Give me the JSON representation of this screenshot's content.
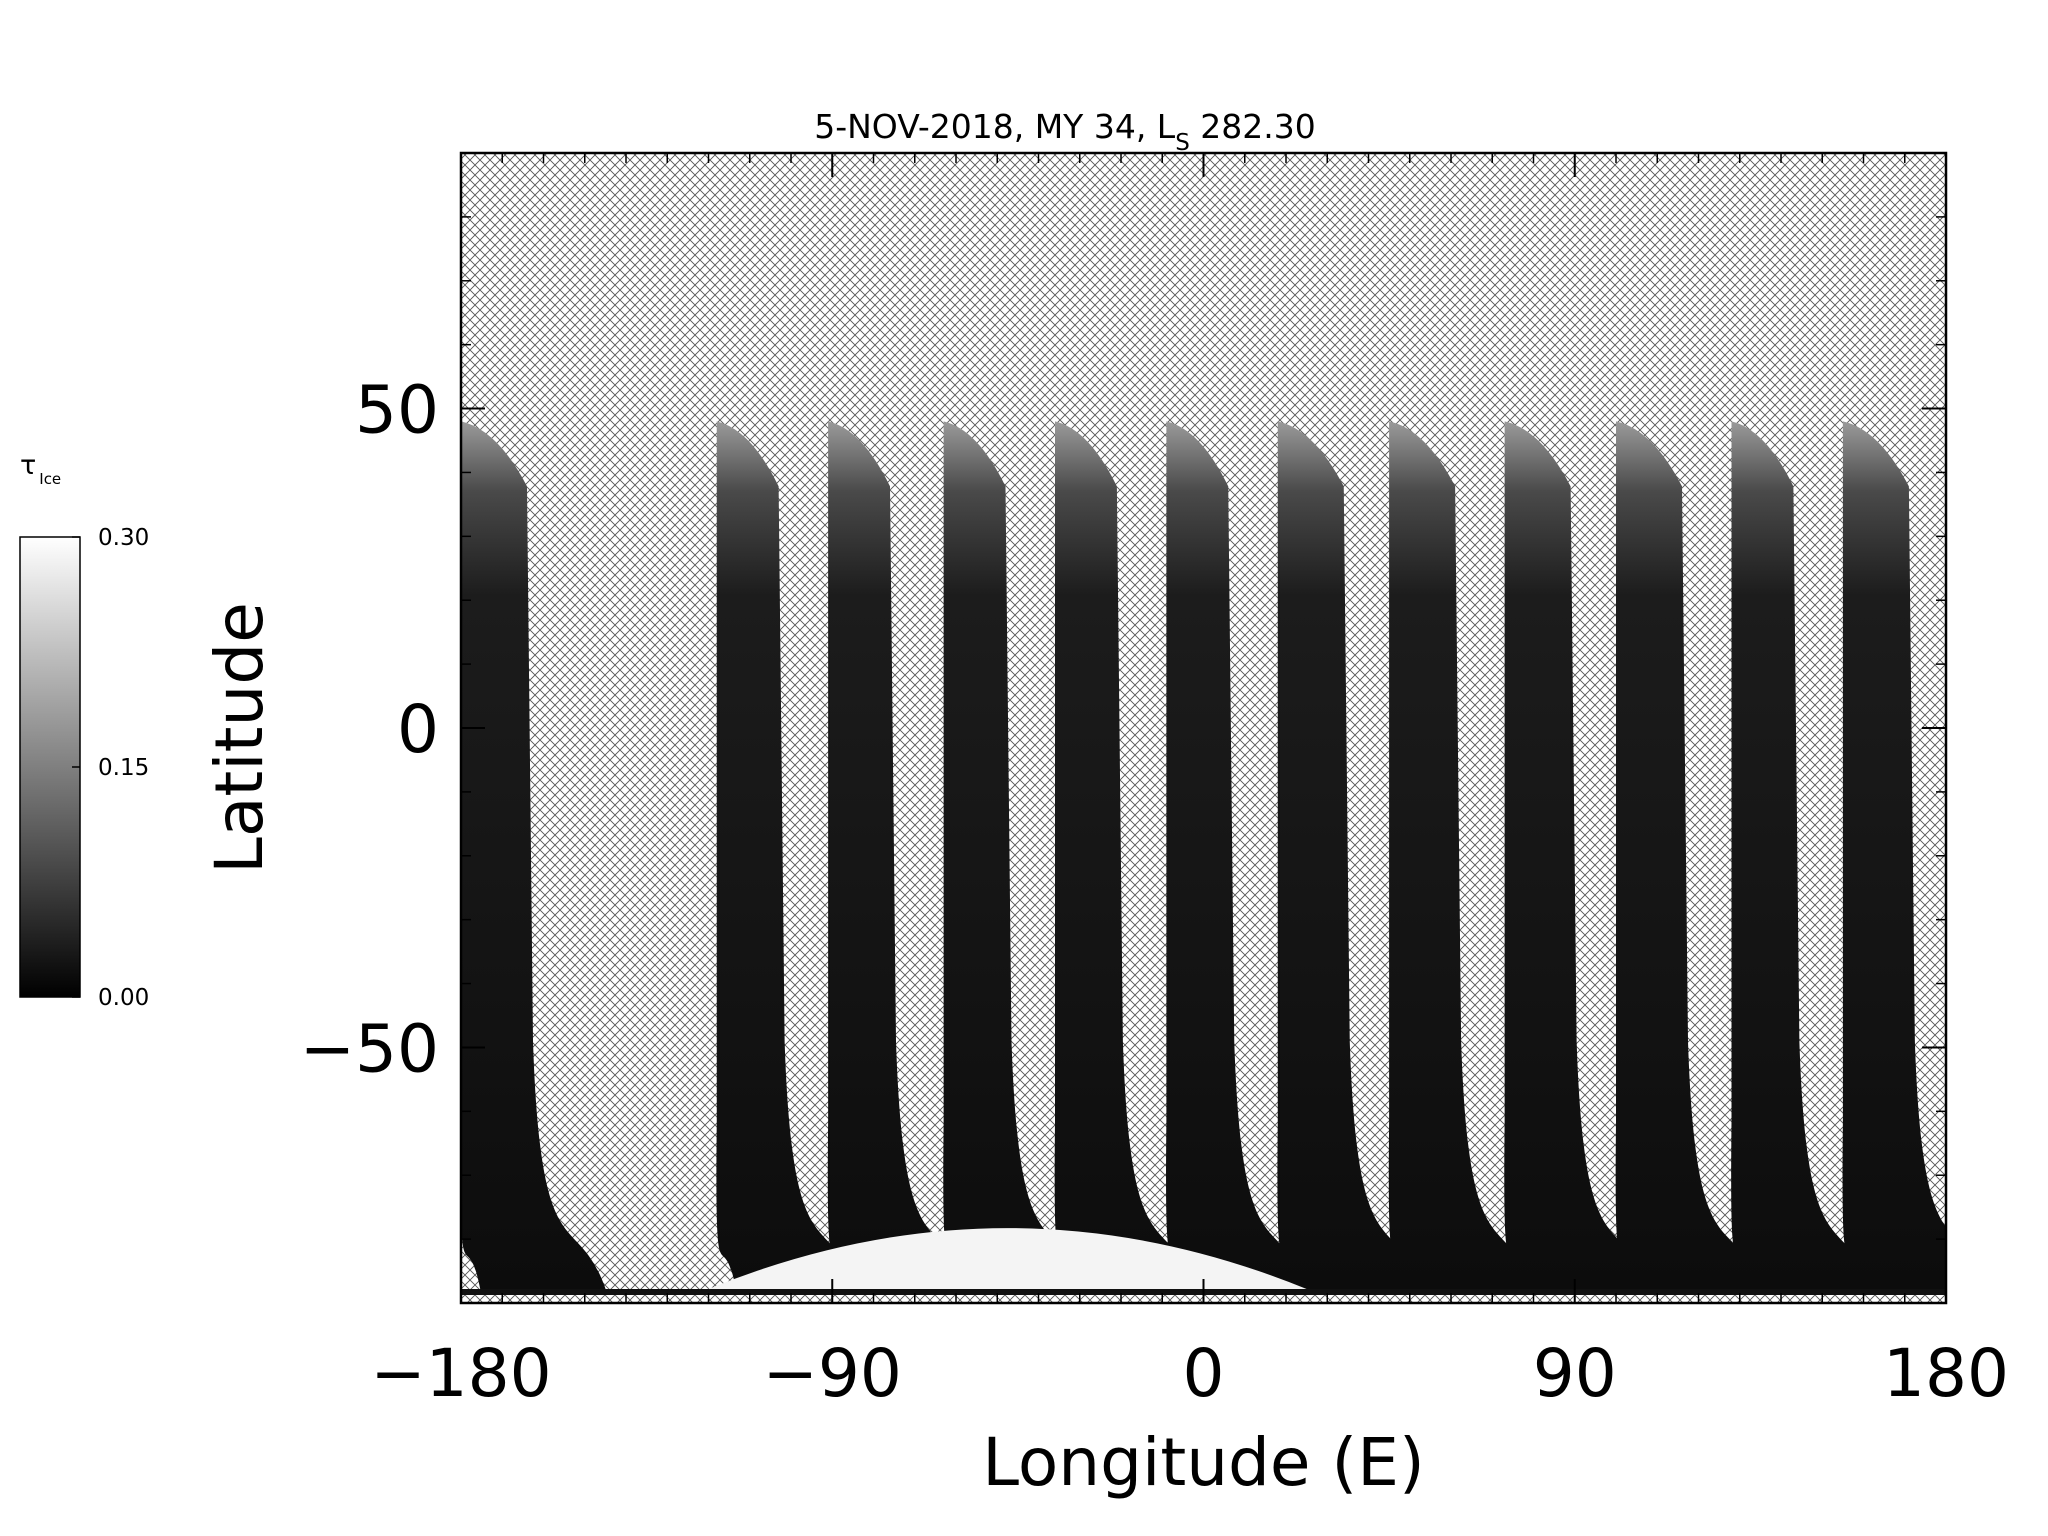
{
  "chart_data": {
    "type": "heatmap",
    "title": {
      "prefix": "5-NOV-2018, MY 34,  L",
      "subscript": "S",
      "suffix": " 282.30"
    },
    "xlabel": "Longitude (E)",
    "ylabel": "Latitude",
    "xlim": [
      -180,
      180
    ],
    "ylim": [
      -90,
      90
    ],
    "x_ticks": [
      -180,
      -90,
      0,
      90,
      180
    ],
    "x_tick_labels": [
      "−180",
      "−90",
      "0",
      "90",
      "180"
    ],
    "y_ticks": [
      -50,
      0,
      50
    ],
    "y_tick_labels": [
      "−50",
      "0",
      "50"
    ],
    "grid": false,
    "missing_data_pattern": "cross-hatch",
    "colorbar": {
      "label_symbol": "τ",
      "label_subscript": "Ice",
      "range": [
        0.0,
        0.3
      ],
      "ticks": [
        "0.30",
        "0.15",
        "0.00"
      ],
      "colormap": "grayscale",
      "color_low": "#000000",
      "color_high": "#ffffff"
    },
    "swaths": [
      {
        "lon_north": -180,
        "lat_north": 48,
        "lon_south": -164,
        "lat_south": -75
      },
      {
        "lon_north": -118,
        "lat_north": 48,
        "lon_south": -103,
        "lat_south": -78
      },
      {
        "lon_north": -91,
        "lat_north": 48,
        "lon_south": -76,
        "lat_south": -78
      },
      {
        "lon_north": -63,
        "lat_north": 48,
        "lon_south": -48,
        "lat_south": -78
      },
      {
        "lon_north": -36,
        "lat_north": 48,
        "lon_south": -21,
        "lat_south": -78
      },
      {
        "lon_north": -9,
        "lat_north": 48,
        "lon_south": 6,
        "lat_south": -78
      },
      {
        "lon_north": 18,
        "lat_north": 48,
        "lon_south": 34,
        "lat_south": -78
      },
      {
        "lon_north": 45,
        "lat_north": 48,
        "lon_south": 61,
        "lat_south": -78
      },
      {
        "lon_north": 73,
        "lat_north": 48,
        "lon_south": 89,
        "lat_south": -78
      },
      {
        "lon_north": 100,
        "lat_north": 48,
        "lon_south": 116,
        "lat_south": -78
      },
      {
        "lon_north": 128,
        "lat_north": 48,
        "lon_south": 143,
        "lat_south": -78
      },
      {
        "lon_north": 155,
        "lat_north": 48,
        "lon_south": 171,
        "lat_south": -78
      }
    ],
    "bright_cap": {
      "lon_min": -120,
      "lon_max": 25,
      "lat_top": -75,
      "tau": 0.3
    }
  }
}
